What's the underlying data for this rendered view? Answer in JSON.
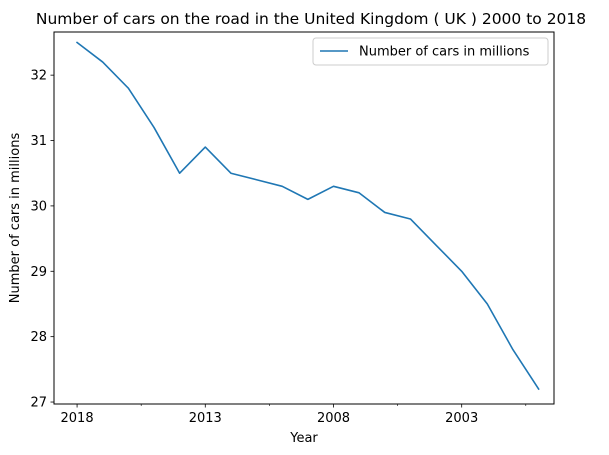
{
  "chart_data": {
    "type": "line",
    "title": "Number of cars on the road in the United Kingdom ( UK ) 2000 to 2018",
    "xlabel": "Year",
    "ylabel": "Number of cars in millions",
    "x": [
      2018,
      2017,
      2016,
      2015,
      2014,
      2013,
      2012,
      2011,
      2010,
      2009,
      2008,
      2007,
      2006,
      2005,
      2004,
      2003,
      2002,
      2001,
      2000
    ],
    "series": [
      {
        "name": "Number of cars in millions",
        "color": "#1f77b4",
        "values": [
          32.5,
          32.2,
          31.8,
          31.2,
          30.5,
          30.9,
          30.5,
          30.4,
          30.3,
          30.1,
          30.3,
          30.2,
          29.9,
          29.8,
          29.4,
          29.0,
          28.5,
          27.8,
          27.2
        ]
      }
    ],
    "xlim": [
      2018.9,
      1999.4
    ],
    "ylim": [
      26.97,
      32.66
    ],
    "x_axis_reversed": true,
    "x_ticks_major": [
      2018,
      2013,
      2008,
      2003
    ],
    "x_tick_labels": [
      "2018",
      "2013",
      "2008",
      "2003"
    ],
    "x_ticks_minor": [
      2015.5,
      2010.5,
      2005.5,
      2000.5
    ],
    "y_ticks": [
      27,
      28,
      29,
      30,
      31,
      32
    ],
    "y_tick_labels": [
      "27",
      "28",
      "29",
      "30",
      "31",
      "32"
    ],
    "grid": false,
    "legend_position": "upper right"
  }
}
